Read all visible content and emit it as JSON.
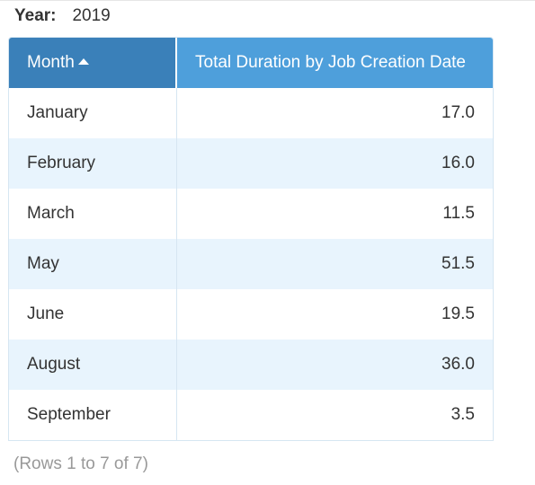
{
  "filter": {
    "year_label": "Year:",
    "year_value": "2019"
  },
  "table": {
    "columns": [
      {
        "label": "Month",
        "sort": "ascending"
      },
      {
        "label": "Total Duration by Job Creation Date"
      }
    ],
    "rows": [
      {
        "month": "January",
        "value": "17.0"
      },
      {
        "month": "February",
        "value": "16.0"
      },
      {
        "month": "March",
        "value": "11.5"
      },
      {
        "month": "May",
        "value": "51.5"
      },
      {
        "month": "June",
        "value": "19.5"
      },
      {
        "month": "August",
        "value": "36.0"
      },
      {
        "month": "September",
        "value": "3.5"
      }
    ],
    "colors": {
      "header_month": "#3a80b9",
      "header_value": "#4e9fdb",
      "row_alt": "#e8f4fd"
    }
  },
  "footer": {
    "rows_info": "(Rows 1 to 7 of 7)"
  }
}
